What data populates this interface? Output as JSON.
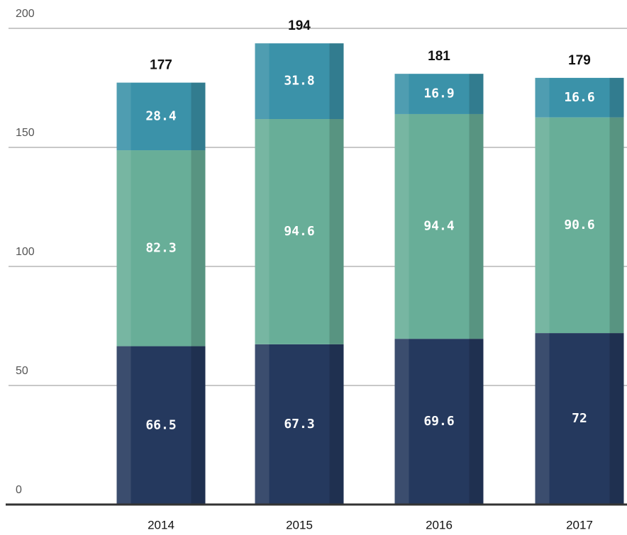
{
  "chart_data": {
    "type": "stacked-bar",
    "categories": [
      "2014",
      "2015",
      "2016",
      "2017"
    ],
    "series": [
      {
        "color": "#25395e",
        "values": [
          66.5,
          67.3,
          69.6,
          72
        ]
      },
      {
        "color": "#68ae98",
        "values": [
          82.3,
          94.6,
          94.4,
          90.6
        ]
      },
      {
        "color": "#3b92a9",
        "values": [
          28.4,
          31.8,
          16.9,
          16.6
        ]
      }
    ],
    "totals": [
      177,
      194,
      181,
      179
    ],
    "ylim": [
      0,
      200
    ],
    "yticks": [
      0,
      50,
      100,
      150,
      200
    ],
    "grid": true
  }
}
